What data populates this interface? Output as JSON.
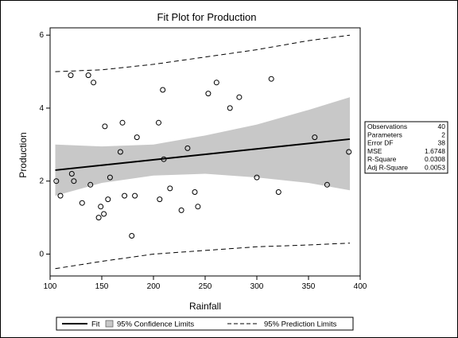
{
  "chart_data": {
    "type": "scatter",
    "title": "Fit Plot for Production",
    "xlabel": "Rainfall",
    "ylabel": "Production",
    "xlim": [
      100,
      400
    ],
    "ylim": [
      -0.6,
      6.2
    ],
    "xticks": [
      100,
      150,
      200,
      250,
      300,
      350,
      400
    ],
    "yticks": [
      0,
      2,
      4,
      6
    ],
    "grid": false,
    "legend_position": "bottom",
    "colors": {
      "fit": "#000000",
      "band": "#c8c8c8",
      "points": "#000000"
    },
    "series": [
      {
        "name": "Observations",
        "style": "open-circle",
        "points": [
          [
            106,
            2.0
          ],
          [
            110,
            1.6
          ],
          [
            120,
            4.9
          ],
          [
            121,
            2.2
          ],
          [
            123,
            2.0
          ],
          [
            131,
            1.4
          ],
          [
            137,
            4.9
          ],
          [
            139,
            1.9
          ],
          [
            142,
            4.7
          ],
          [
            147,
            1.0
          ],
          [
            149,
            1.3
          ],
          [
            152,
            1.1
          ],
          [
            153,
            3.5
          ],
          [
            156,
            1.5
          ],
          [
            158,
            2.1
          ],
          [
            168,
            2.8
          ],
          [
            170,
            3.6
          ],
          [
            172,
            1.6
          ],
          [
            179,
            0.5
          ],
          [
            182,
            1.6
          ],
          [
            184,
            3.2
          ],
          [
            205,
            3.6
          ],
          [
            206,
            1.5
          ],
          [
            209,
            4.5
          ],
          [
            210,
            2.6
          ],
          [
            216,
            1.8
          ],
          [
            227,
            1.2
          ],
          [
            233,
            2.9
          ],
          [
            240,
            1.7
          ],
          [
            243,
            1.3
          ],
          [
            253,
            4.4
          ],
          [
            261,
            4.7
          ],
          [
            274,
            4.0
          ],
          [
            283,
            4.3
          ],
          [
            300,
            2.1
          ],
          [
            314,
            4.8
          ],
          [
            321,
            1.7
          ],
          [
            356,
            3.2
          ],
          [
            368,
            1.9
          ],
          [
            389,
            2.8
          ]
        ]
      },
      {
        "name": "Fit",
        "x": [
          105,
          390
        ],
        "y": [
          2.3,
          3.15
        ]
      },
      {
        "name": "95% Confidence Limits",
        "x": [
          105,
          150,
          200,
          250,
          300,
          350,
          390
        ],
        "lower": [
          1.6,
          1.95,
          2.15,
          2.2,
          2.1,
          1.95,
          1.75
        ],
        "upper": [
          3.0,
          2.95,
          3.0,
          3.25,
          3.55,
          3.95,
          4.3
        ]
      },
      {
        "name": "95% Prediction Limits",
        "x": [
          105,
          150,
          200,
          250,
          300,
          350,
          390
        ],
        "lower": [
          -0.4,
          -0.2,
          0.0,
          0.1,
          0.2,
          0.25,
          0.3
        ],
        "upper": [
          5.0,
          5.05,
          5.2,
          5.4,
          5.6,
          5.85,
          6.0
        ]
      }
    ],
    "stats_table": [
      [
        "Observations",
        "40"
      ],
      [
        "Parameters",
        "2"
      ],
      [
        "Error DF",
        "38"
      ],
      [
        "MSE",
        "1.6748"
      ],
      [
        "R-Square",
        "0.0308"
      ],
      [
        "Adj R-Square",
        "0.0053"
      ]
    ],
    "legend": [
      {
        "label": "Fit",
        "style": "solid-line"
      },
      {
        "label": "95% Confidence Limits",
        "style": "filled-box"
      },
      {
        "label": "95% Prediction Limits",
        "style": "dashed-line"
      }
    ]
  }
}
